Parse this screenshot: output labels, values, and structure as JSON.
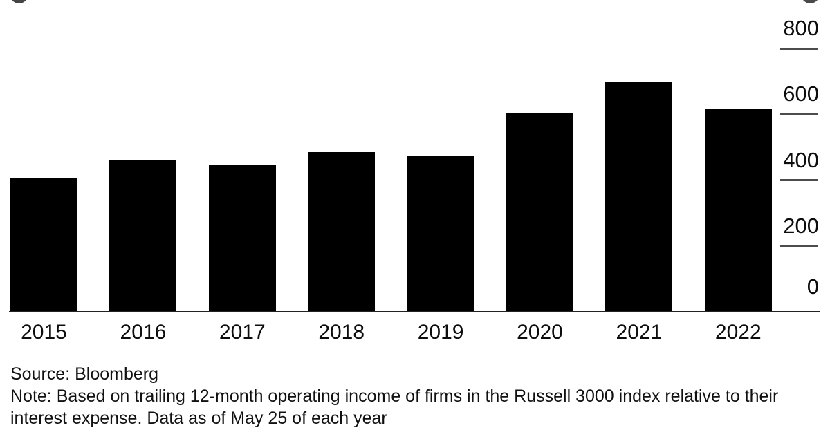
{
  "chart_data": {
    "type": "bar",
    "title": "",
    "xlabel": "",
    "ylabel": "",
    "categories": [
      "2015",
      "2016",
      "2017",
      "2018",
      "2019",
      "2020",
      "2021",
      "2022"
    ],
    "values": [
      405,
      460,
      445,
      485,
      475,
      605,
      700,
      615
    ],
    "ylim": [
      0,
      800
    ],
    "yticks": [
      0,
      200,
      400,
      600,
      800
    ],
    "bar_color": "#000000",
    "axis_side": "right",
    "grid": "tick-dashes-below-labels-right-side-only",
    "legend_position": "none"
  },
  "footer": {
    "source": "Source: Bloomberg",
    "note_line": "Note: Based on trailing 12-month operating income of firms in the Russell 3000 index relative to their interest expense. Data as of May 25 of each year"
  },
  "decorations": {
    "top_left_circle": "cropped dark circle",
    "top_right_circle": "cropped dark circle"
  },
  "colors": {
    "bar": "#000000",
    "axis_line": "#222222",
    "tick": "#4c4c4c",
    "text": "#0d0d0d",
    "background": "#ffffff"
  }
}
